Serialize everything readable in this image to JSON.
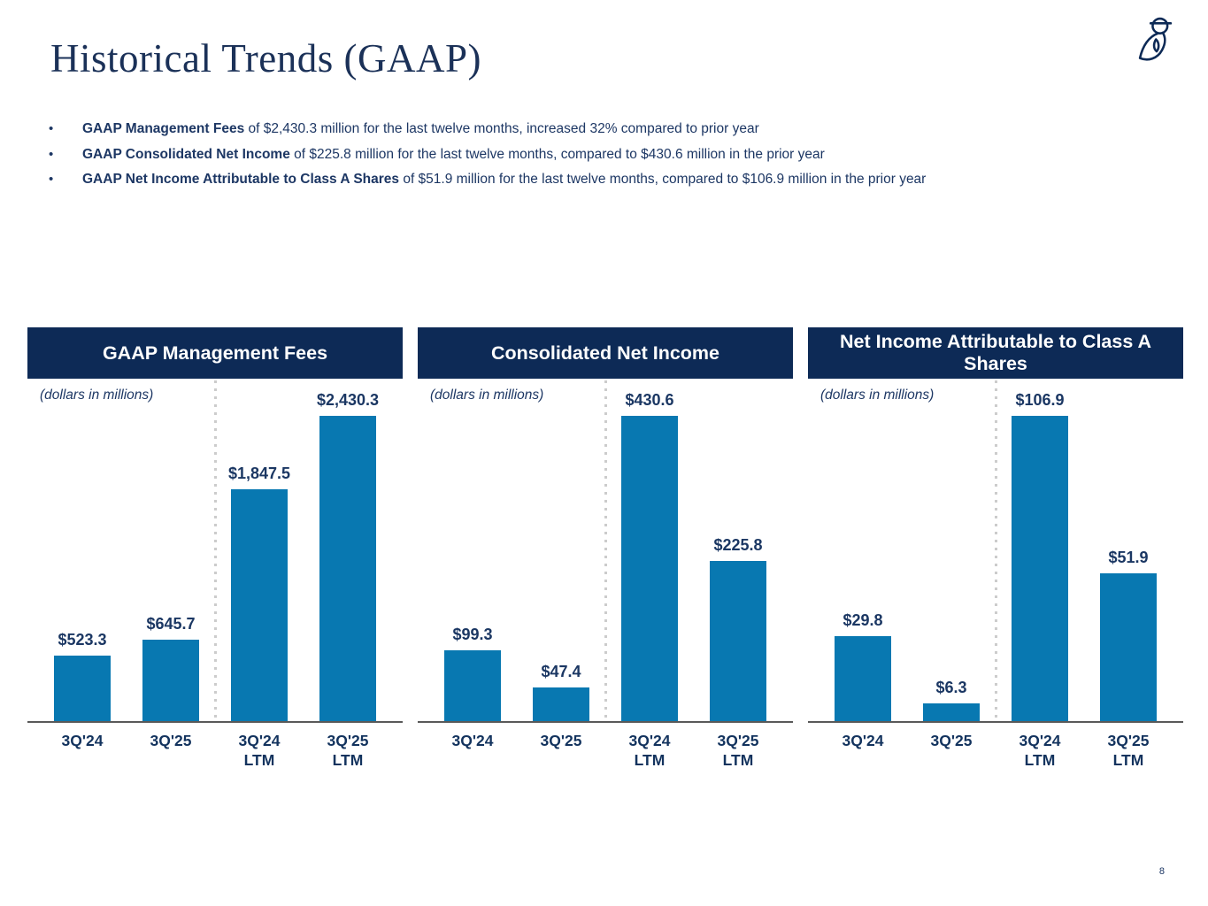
{
  "page": {
    "title": "Historical Trends (GAAP)",
    "page_number": "8"
  },
  "colors": {
    "bar": "#0878b1",
    "header_bg": "#0d2a56",
    "text_navy": "#1d3764",
    "axis": "#595959",
    "separator_dots": "#cccccc"
  },
  "bullets": [
    {
      "bold": "GAAP Management Fees",
      "rest": " of $2,430.3 million for the last twelve months, increased 32% compared to prior year"
    },
    {
      "bold": "GAAP Consolidated Net Income",
      "rest": " of $225.8 million for the last twelve months, compared to $430.6 million in the prior year"
    },
    {
      "bold": "GAAP Net Income Attributable to Class A Shares",
      "rest": " of $51.9 million for the last twelve months, compared to $106.9 million in the prior year"
    }
  ],
  "chart_data": [
    {
      "type": "bar",
      "title": "GAAP Management Fees",
      "units_label": "(dollars in millions)",
      "categories": [
        "3Q'24",
        "3Q'25",
        "3Q'24 LTM",
        "3Q'25 LTM"
      ],
      "values": [
        523.3,
        645.7,
        1847.5,
        2430.3
      ],
      "value_labels": [
        "$523.3",
        "$645.7",
        "$1,847.5",
        "$2,430.3"
      ],
      "separator_between": "quarterly-vs-ltm",
      "ylim": [
        0,
        2430.3
      ],
      "grid": "off",
      "legend": "none"
    },
    {
      "type": "bar",
      "title": "Consolidated Net Income",
      "units_label": "(dollars in millions)",
      "categories": [
        "3Q'24",
        "3Q'25",
        "3Q'24 LTM",
        "3Q'25 LTM"
      ],
      "values": [
        99.3,
        47.4,
        430.6,
        225.8
      ],
      "value_labels": [
        "$99.3",
        "$47.4",
        "$430.6",
        "$225.8"
      ],
      "separator_between": "quarterly-vs-ltm",
      "ylim": [
        0,
        430.6
      ],
      "grid": "off",
      "legend": "none"
    },
    {
      "type": "bar",
      "title": "Net Income Attributable to Class A Shares",
      "units_label": "(dollars in millions)",
      "categories": [
        "3Q'24",
        "3Q'25",
        "3Q'24 LTM",
        "3Q'25 LTM"
      ],
      "values": [
        29.8,
        6.3,
        106.9,
        51.9
      ],
      "value_labels": [
        "$29.8",
        "$6.3",
        "$106.9",
        "$51.9"
      ],
      "separator_between": "quarterly-vs-ltm",
      "ylim": [
        0,
        106.9
      ],
      "grid": "off",
      "legend": "none"
    }
  ]
}
